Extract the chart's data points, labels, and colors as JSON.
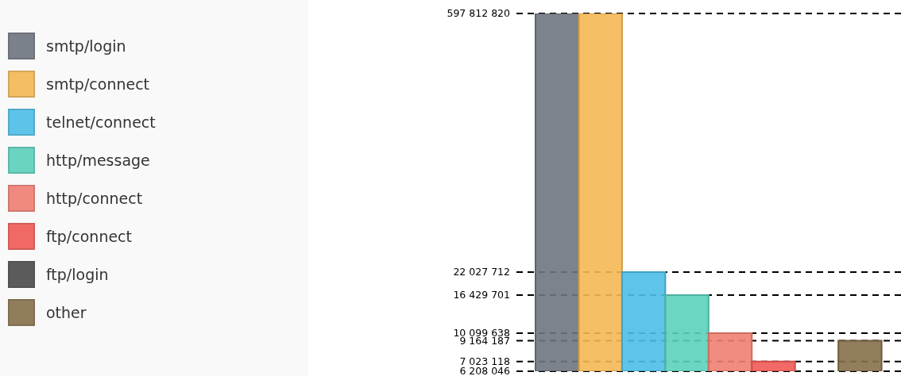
{
  "chart_data": {
    "type": "bar",
    "log": "y",
    "categories": [
      null
    ],
    "series": [
      {
        "name": "smtp/login",
        "color": "#6e757e",
        "values": [
          597812820
        ]
      },
      {
        "name": "smtp/connect",
        "color": "#f5b855",
        "values": [
          597812820
        ]
      },
      {
        "name": "telnet/connect",
        "color": "#4dbee8",
        "values": [
          22027712
        ]
      },
      {
        "name": "http/message",
        "color": "#5bd1bb",
        "values": [
          16429701
        ]
      },
      {
        "name": "http/connect",
        "color": "#f07f72",
        "values": [
          10099638
        ]
      },
      {
        "name": "ftp/connect",
        "color": "#f15a55",
        "values": [
          7023118
        ]
      },
      {
        "name": "ftp/login",
        "color": "#4b4b4b",
        "values": [
          6208046
        ]
      },
      {
        "name": "other",
        "color": "#86704b",
        "values": [
          9164187
        ]
      }
    ],
    "ylim": [
      6208046,
      597812820
    ],
    "yticks": [
      {
        "value": 6208046,
        "label": "6 208 046"
      },
      {
        "value": 7023118,
        "label": "7 023 118"
      },
      {
        "value": 9164187,
        "label": "9 164 187"
      },
      {
        "value": 10099638,
        "label": "10 099 638"
      },
      {
        "value": 16429701,
        "label": "16 429 701"
      },
      {
        "value": 22027712,
        "label": "22 027 712"
      },
      {
        "value": 597812820,
        "label": "597 812 820"
      }
    ],
    "grid": "y",
    "legend": "left",
    "tick_labels": "y"
  }
}
